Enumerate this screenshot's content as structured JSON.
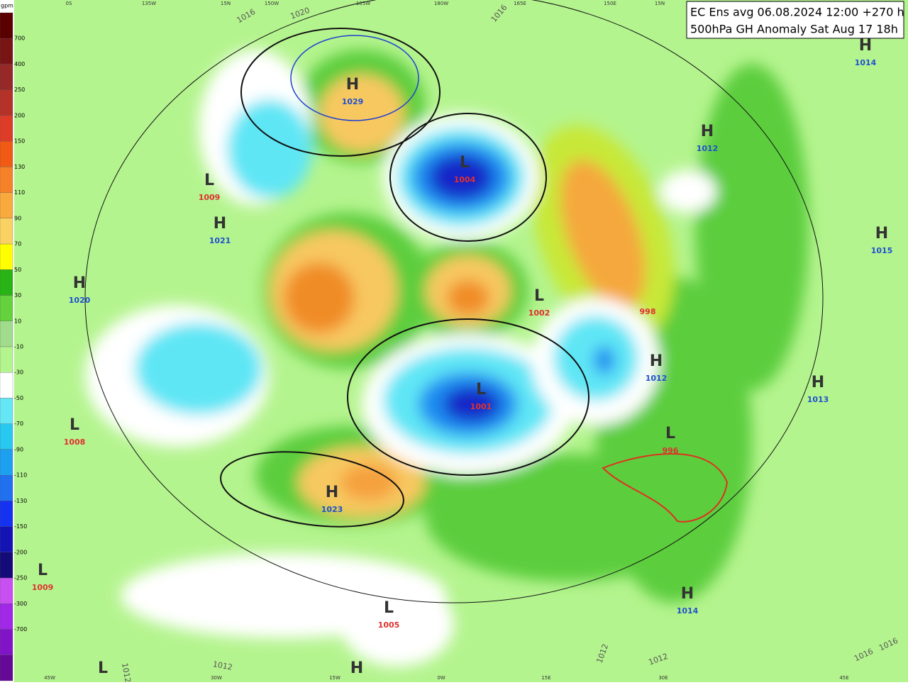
{
  "header": {
    "line1": "EC Ens avg 06.08.2024 12:00 +270 h",
    "line2": "500hPa GH Anomaly Sat Aug 17 18h"
  },
  "legend": {
    "unit": "gpm",
    "labels": [
      "700",
      "400",
      "250",
      "200",
      "150",
      "130",
      "110",
      "90",
      "70",
      "50",
      "30",
      "10",
      "-10",
      "-30",
      "-50",
      "-70",
      "-90",
      "-110",
      "-130",
      "-150",
      "-200",
      "-250",
      "-300",
      "-700"
    ]
  },
  "longitudes": {
    "top": [
      "0S",
      "135W",
      "15N",
      "150W",
      "165W",
      "180W",
      "165E",
      "150E",
      "15N"
    ],
    "bottom": [
      "45W",
      "30W",
      "15W",
      "0W",
      "15E",
      "30E",
      "45E"
    ]
  },
  "isobars": [
    "1016",
    "1020",
    "1016",
    "1012",
    "1012",
    "1012",
    "1012",
    "1016",
    "1016"
  ],
  "centers": [
    {
      "letter": "H",
      "value": "1029"
    },
    {
      "letter": "L",
      "value": "1004"
    },
    {
      "letter": "L",
      "value": "1009"
    },
    {
      "letter": "H",
      "value": "1021"
    },
    {
      "letter": "H",
      "value": "1020"
    },
    {
      "letter": "L",
      "value": "1002"
    },
    {
      "letter": "H",
      "value": "1014"
    },
    {
      "letter": "H",
      "value": "1012"
    },
    {
      "letter": "H",
      "value": "1015"
    },
    {
      "letter": "H",
      "value": "1013"
    },
    {
      "letter": "H",
      "value": "1012"
    },
    {
      "letter": "L",
      "value": "1001"
    },
    {
      "letter": "L",
      "value": "1008"
    },
    {
      "letter": "L",
      "value": "996"
    },
    {
      "letter": "H",
      "value": "1023"
    },
    {
      "letter": "L",
      "value": "1009"
    },
    {
      "letter": "L",
      "value": "1005"
    },
    {
      "letter": "H",
      "value": "1014"
    },
    {
      "letter": "L"
    },
    {
      "letter": "H"
    },
    {
      "value": "998"
    }
  ]
}
